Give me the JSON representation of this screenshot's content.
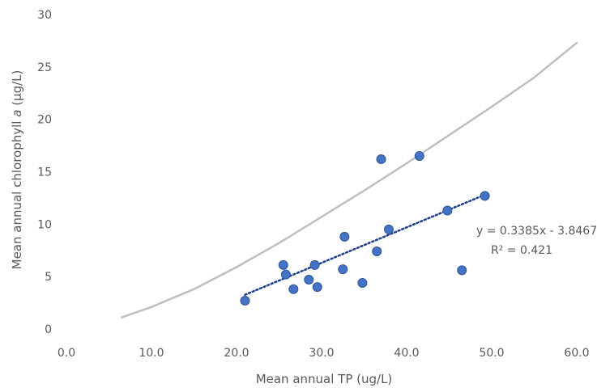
{
  "chart_data": {
    "type": "scatter",
    "title": "",
    "xlabel": "Mean annual TP (ug/L)",
    "ylabel": {
      "prefix": "Mean annual chlorophyll ",
      "italic": "a",
      "suffix": " (µg/L)"
    },
    "xlim": [
      0,
      60
    ],
    "ylim": [
      0,
      30
    ],
    "x_ticks": [
      "0.0",
      "10.0",
      "20.0",
      "30.0",
      "40.0",
      "50.0",
      "60.0"
    ],
    "y_ticks": [
      "0",
      "5",
      "10",
      "15",
      "20",
      "25",
      "30"
    ],
    "grid": false,
    "points": [
      {
        "x": 21.0,
        "y": 2.7
      },
      {
        "x": 25.5,
        "y": 6.1
      },
      {
        "x": 25.8,
        "y": 5.2
      },
      {
        "x": 26.7,
        "y": 3.8
      },
      {
        "x": 28.5,
        "y": 4.7
      },
      {
        "x": 29.2,
        "y": 6.1
      },
      {
        "x": 29.5,
        "y": 4.0
      },
      {
        "x": 32.5,
        "y": 5.7
      },
      {
        "x": 32.7,
        "y": 8.8
      },
      {
        "x": 34.8,
        "y": 4.4
      },
      {
        "x": 36.5,
        "y": 7.4
      },
      {
        "x": 37.0,
        "y": 16.2
      },
      {
        "x": 37.9,
        "y": 9.5
      },
      {
        "x": 41.5,
        "y": 16.5
      },
      {
        "x": 44.8,
        "y": 11.3
      },
      {
        "x": 46.5,
        "y": 5.6
      },
      {
        "x": 49.2,
        "y": 12.7
      }
    ],
    "trendline": {
      "slope": 0.3385,
      "intercept": -3.8467,
      "x_range": [
        21.0,
        49.2
      ],
      "equation": "y = 0.3385x - 3.8467",
      "r_squared": "R² = 0.421"
    },
    "reference_curve": [
      {
        "x": 6.5,
        "y": 1.1
      },
      {
        "x": 10,
        "y": 2.1
      },
      {
        "x": 15,
        "y": 3.8
      },
      {
        "x": 20,
        "y": 5.9
      },
      {
        "x": 25,
        "y": 8.2
      },
      {
        "x": 30,
        "y": 10.7
      },
      {
        "x": 35,
        "y": 13.2
      },
      {
        "x": 40,
        "y": 15.8
      },
      {
        "x": 45,
        "y": 18.5
      },
      {
        "x": 50,
        "y": 21.2
      },
      {
        "x": 55,
        "y": 24.0
      },
      {
        "x": 60,
        "y": 27.3
      }
    ],
    "colors": {
      "points": "#4472c4",
      "points_edge": "#2f5597",
      "trendline": "#1f3f8a",
      "reference_curve": "#bfbfbf",
      "text": "#595959"
    }
  }
}
